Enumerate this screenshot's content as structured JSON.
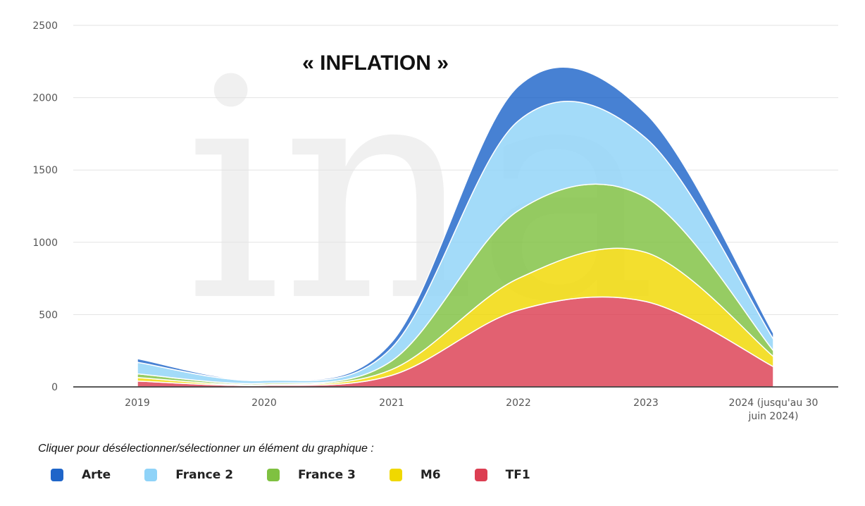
{
  "chart_data": {
    "type": "area",
    "stacked": true,
    "title": "« INFLATION »",
    "watermark": "ina",
    "categories": [
      "2019",
      "2020",
      "2021",
      "2022",
      "2023",
      "2024 (jusqu'au 30 juin 2024)"
    ],
    "category_lines": [
      [
        "2019"
      ],
      [
        "2020"
      ],
      [
        "2021"
      ],
      [
        "2022"
      ],
      [
        "2023"
      ],
      [
        "2024 (jusqu'au 30",
        "juin 2024)"
      ]
    ],
    "y_ticks": [
      0,
      500,
      1000,
      1500,
      2000,
      2500
    ],
    "ylim": [
      0,
      2500
    ],
    "series": [
      {
        "name": "TF1",
        "color": "#dc3e52",
        "values": [
          40,
          10,
          80,
          530,
          590,
          140
        ]
      },
      {
        "name": "M6",
        "color": "#f0d800",
        "values": [
          25,
          5,
          40,
          220,
          340,
          70
        ]
      },
      {
        "name": "France 3",
        "color": "#7fc141",
        "values": [
          25,
          10,
          60,
          470,
          380,
          40
        ]
      },
      {
        "name": "France 2",
        "color": "#8fd3f8",
        "values": [
          80,
          20,
          90,
          620,
          410,
          80
        ]
      },
      {
        "name": "Arte",
        "color": "#1f65c9",
        "values": [
          25,
          5,
          40,
          240,
          170,
          40
        ]
      }
    ],
    "legend_order": [
      "Arte",
      "France 2",
      "France 3",
      "M6",
      "TF1"
    ],
    "legend_hint": "Cliquer pour désélectionner/sélectionner un élément du graphique :"
  }
}
